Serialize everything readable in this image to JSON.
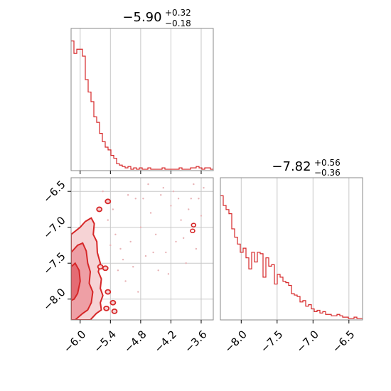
{
  "colors": {
    "accent": "#d62728",
    "fill_light": "#f2bcbf",
    "fill_mid": "#e88a90",
    "grid": "#c8c8c8",
    "frame": "#888888"
  },
  "chart_data": [
    {
      "type": "histogram",
      "panel": "top-left",
      "title": {
        "median": "−5.90",
        "plus": "+0.32",
        "minus": "−0.18"
      },
      "x_range": [
        -6.18,
        -3.36
      ],
      "x_ticks": [
        -6.0,
        -5.4,
        -4.8,
        -4.2,
        -3.6
      ],
      "grid": true,
      "bin_width": 0.0564,
      "heights": [
        0.94,
        0.85,
        0.88,
        0.88,
        0.83,
        0.66,
        0.57,
        0.5,
        0.39,
        0.35,
        0.27,
        0.21,
        0.17,
        0.15,
        0.11,
        0.09,
        0.05,
        0.04,
        0.03,
        0.02,
        0.03,
        0.01,
        0.02,
        0.01,
        0.02,
        0.01,
        0.01,
        0.02,
        0.01,
        0.01,
        0.01,
        0.01,
        0.02,
        0.01,
        0.01,
        0.01,
        0.01,
        0.01,
        0.02,
        0.01,
        0.01,
        0.01,
        0.02,
        0.02,
        0.03,
        0.02,
        0.01,
        0.02,
        0.02,
        0.01
      ]
    },
    {
      "type": "histogram",
      "panel": "bottom-right",
      "title": {
        "median": "−7.82",
        "plus": "+0.56",
        "minus": "−0.36"
      },
      "x_range": [
        -8.29,
        -6.31
      ],
      "x_ticks": [
        "−8.0",
        "−7.5",
        "−7.0",
        "−6.5"
      ],
      "x_tick_values": [
        -8.0,
        -7.5,
        -7.0,
        -6.5
      ],
      "grid": true,
      "bin_width": 0.0396,
      "heights": [
        0.9,
        0.83,
        0.8,
        0.77,
        0.66,
        0.6,
        0.55,
        0.49,
        0.52,
        0.45,
        0.37,
        0.49,
        0.42,
        0.49,
        0.48,
        0.31,
        0.45,
        0.39,
        0.4,
        0.26,
        0.33,
        0.31,
        0.28,
        0.27,
        0.25,
        0.19,
        0.18,
        0.17,
        0.13,
        0.14,
        0.1,
        0.11,
        0.08,
        0.06,
        0.07,
        0.05,
        0.06,
        0.04,
        0.04,
        0.03,
        0.03,
        0.04,
        0.03,
        0.02,
        0.02,
        0.01,
        0.01,
        0.02,
        0.01,
        0.01
      ]
    },
    {
      "type": "contour",
      "panel": "bottom-left",
      "x_range": [
        -6.18,
        -3.36
      ],
      "y_range": [
        -8.29,
        -6.31
      ],
      "x_ticks": [
        "−6.0",
        "−5.4",
        "−4.8",
        "−4.2",
        "−3.6"
      ],
      "x_tick_values": [
        -6.0,
        -5.4,
        -4.8,
        -4.2,
        -3.6
      ],
      "y_ticks": [
        "−6.5",
        "−7.0",
        "−7.5",
        "−8.0"
      ],
      "y_tick_values": [
        -6.5,
        -7.0,
        -7.5,
        -8.0
      ],
      "grid": true,
      "outer_contour": [
        [
          -6.18,
          -7.1
        ],
        [
          -6.0,
          -7.0
        ],
        [
          -5.9,
          -6.92
        ],
        [
          -5.78,
          -6.87
        ],
        [
          -5.72,
          -6.95
        ],
        [
          -5.74,
          -7.1
        ],
        [
          -5.67,
          -7.2
        ],
        [
          -5.66,
          -7.35
        ],
        [
          -5.6,
          -7.5
        ],
        [
          -5.64,
          -7.62
        ],
        [
          -5.58,
          -7.72
        ],
        [
          -5.6,
          -7.85
        ],
        [
          -5.55,
          -7.95
        ],
        [
          -5.6,
          -8.05
        ],
        [
          -5.58,
          -8.15
        ],
        [
          -5.68,
          -8.2
        ],
        [
          -5.8,
          -8.29
        ],
        [
          -6.18,
          -8.29
        ]
      ],
      "mid_contour": [
        [
          -6.18,
          -7.35
        ],
        [
          -6.05,
          -7.25
        ],
        [
          -5.95,
          -7.22
        ],
        [
          -5.88,
          -7.33
        ],
        [
          -5.85,
          -7.5
        ],
        [
          -5.8,
          -7.62
        ],
        [
          -5.82,
          -7.78
        ],
        [
          -5.75,
          -7.9
        ],
        [
          -5.78,
          -8.05
        ],
        [
          -5.85,
          -8.15
        ],
        [
          -5.95,
          -8.2
        ],
        [
          -6.1,
          -8.29
        ],
        [
          -6.18,
          -8.29
        ]
      ],
      "inner_contour": [
        [
          -6.18,
          -7.55
        ],
        [
          -6.1,
          -7.5
        ],
        [
          -6.02,
          -7.6
        ],
        [
          -6.0,
          -7.75
        ],
        [
          -6.05,
          -7.92
        ],
        [
          -6.12,
          -8.0
        ],
        [
          -6.18,
          -8.02
        ]
      ],
      "islands": [
        [
          -5.45,
          -6.64
        ],
        [
          -5.62,
          -6.75
        ],
        [
          -5.5,
          -7.57
        ],
        [
          -5.45,
          -7.9
        ],
        [
          -5.35,
          -8.05
        ],
        [
          -5.48,
          -8.13
        ],
        [
          -5.32,
          -8.17
        ],
        [
          -5.6,
          -7.55
        ]
      ],
      "outlier_contours": [
        [
          -3.75,
          -6.97
        ],
        [
          -3.77,
          -7.05
        ]
      ],
      "outlier_points": [
        [
          -3.6,
          -6.84
        ],
        [
          -5.55,
          -6.5
        ],
        [
          -5.45,
          -6.9
        ],
        [
          -5.3,
          -7.1
        ],
        [
          -5.2,
          -7.3
        ],
        [
          -5.15,
          -7.45
        ],
        [
          -5.0,
          -7.2
        ],
        [
          -4.9,
          -6.6
        ],
        [
          -4.8,
          -7.0
        ],
        [
          -4.7,
          -7.4
        ],
        [
          -4.6,
          -6.8
        ],
        [
          -4.5,
          -7.1
        ],
        [
          -4.4,
          -6.55
        ],
        [
          -4.3,
          -7.35
        ],
        [
          -4.2,
          -6.7
        ],
        [
          -4.1,
          -7.2
        ],
        [
          -4.0,
          -6.9
        ],
        [
          -3.9,
          -7.5
        ],
        [
          -3.8,
          -6.6
        ],
        [
          -3.7,
          -7.3
        ],
        [
          -3.55,
          -6.45
        ],
        [
          -4.85,
          -7.9
        ],
        [
          -5.1,
          -7.75
        ],
        [
          -5.25,
          -7.6
        ],
        [
          -4.95,
          -7.55
        ],
        [
          -4.35,
          -6.45
        ],
        [
          -4.05,
          -6.6
        ],
        [
          -3.85,
          -6.75
        ],
        [
          -4.65,
          -6.4
        ],
        [
          -5.05,
          -6.55
        ],
        [
          -4.25,
          -7.65
        ],
        [
          -3.95,
          -7.15
        ],
        [
          -4.45,
          -7.6
        ],
        [
          -5.35,
          -6.75
        ],
        [
          -5.4,
          -7.25
        ],
        [
          -4.75,
          -6.6
        ],
        [
          -3.65,
          -6.6
        ],
        [
          -4.15,
          -6.5
        ],
        [
          -4.55,
          -7.35
        ],
        [
          -3.75,
          -6.4
        ]
      ]
    }
  ]
}
